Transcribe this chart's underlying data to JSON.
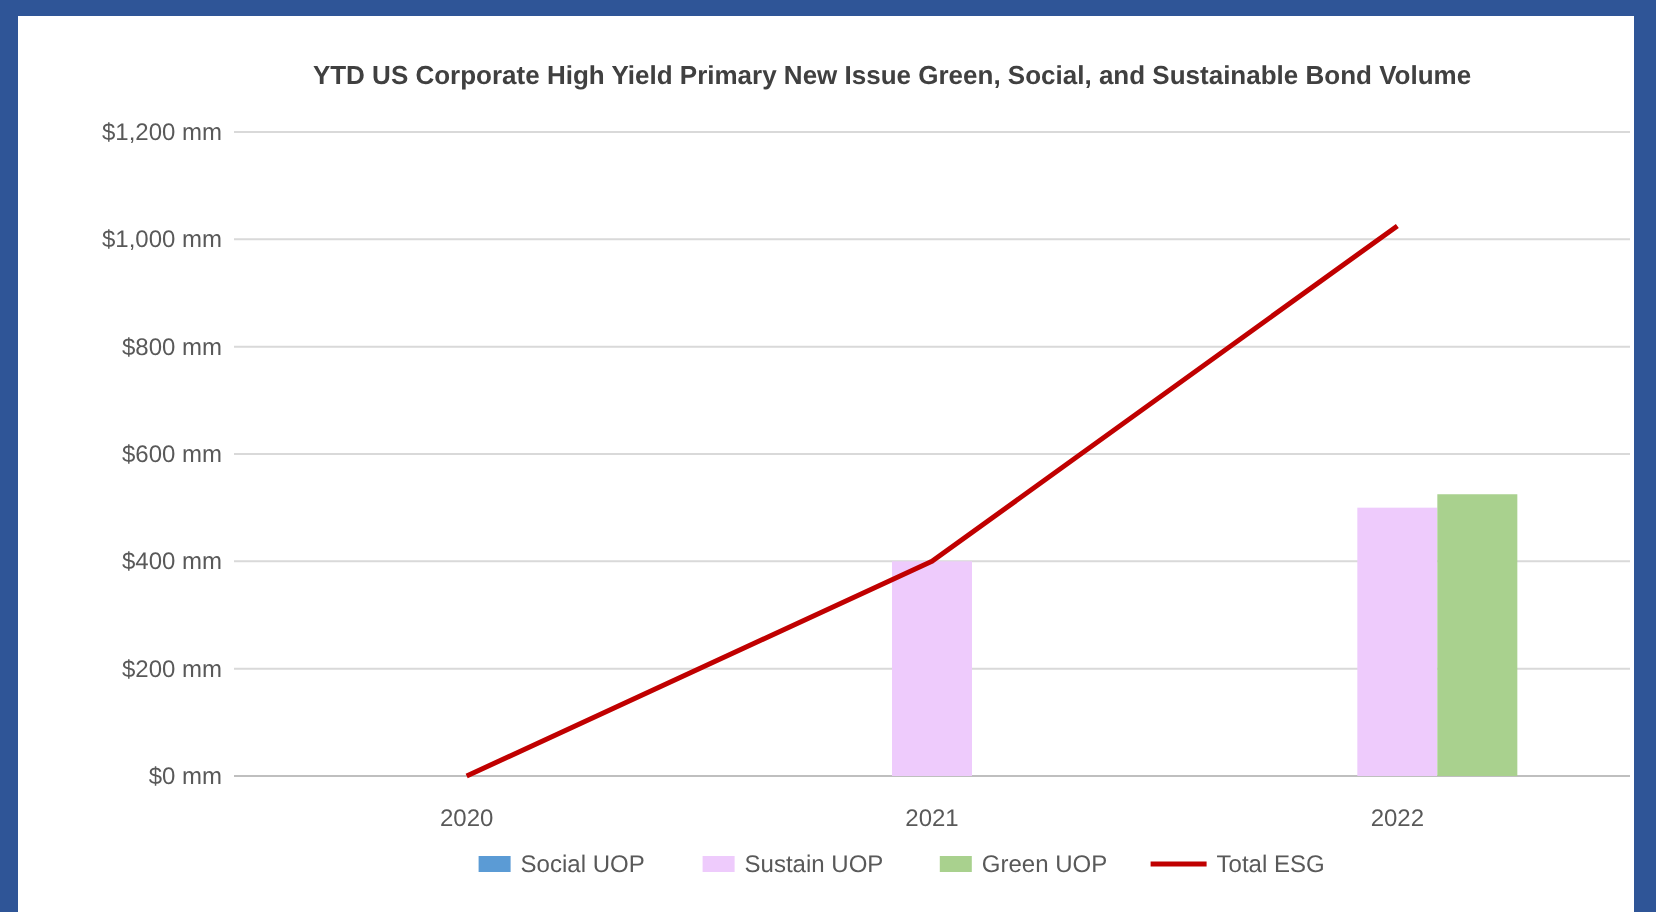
{
  "chart_data": {
    "type": "bar",
    "title": "YTD US Corporate High Yield Primary New Issue Green, Social, and Sustainable Bond Volume",
    "categories": [
      "2020",
      "2021",
      "2022"
    ],
    "series": [
      {
        "name": "Social UOP",
        "color": "#5b9bd5",
        "values": [
          0,
          0,
          0
        ]
      },
      {
        "name": "Sustain UOP",
        "color": "#eecbfc",
        "values": [
          0,
          400,
          500
        ]
      },
      {
        "name": "Green UOP",
        "color": "#a9d18e",
        "values": [
          0,
          0,
          525
        ]
      },
      {
        "name": "Total ESG",
        "type": "line",
        "color": "#c00000",
        "values": [
          0,
          400,
          1025
        ]
      }
    ],
    "ylim": [
      0,
      1200
    ],
    "yticks": [
      {
        "value": 0,
        "label": "$0 mm"
      },
      {
        "value": 200,
        "label": "$200 mm"
      },
      {
        "value": 400,
        "label": "$400 mm"
      },
      {
        "value": 600,
        "label": "$600 mm"
      },
      {
        "value": 800,
        "label": "$800 mm"
      },
      {
        "value": 1000,
        "label": "$1,000 mm"
      },
      {
        "value": 1200,
        "label": "$1,200 mm"
      }
    ],
    "grid": "y",
    "legend": "bottom"
  }
}
